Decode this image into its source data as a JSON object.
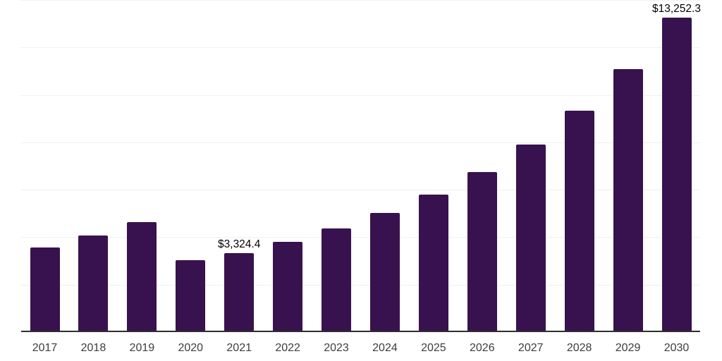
{
  "chart_data": {
    "type": "bar",
    "title": "",
    "xlabel": "",
    "ylabel": "",
    "categories": [
      "2017",
      "2018",
      "2019",
      "2020",
      "2021",
      "2022",
      "2023",
      "2024",
      "2025",
      "2026",
      "2027",
      "2028",
      "2029",
      "2030"
    ],
    "values": [
      3575,
      4080,
      4650,
      3035,
      3324.4,
      3800,
      4360,
      5015,
      5785,
      6760,
      7905,
      9330,
      11090,
      13252.3
    ],
    "annotations": [
      {
        "category": "2021",
        "label": "$3,324.4"
      },
      {
        "category": "2030",
        "label": "$13,252.3"
      }
    ],
    "ylim": [
      0,
      14000
    ],
    "gridline_step": 2000,
    "grid": true,
    "legend": "none",
    "y_axis_labels_shown": false,
    "bar_color": "#38124e",
    "axis_line_color": "#2e2e2e",
    "gridline_color": "#f0f0f0",
    "x_tick_color": "#3d3d3d",
    "value_label_color": "#000000",
    "background_color": "#ffffff"
  }
}
